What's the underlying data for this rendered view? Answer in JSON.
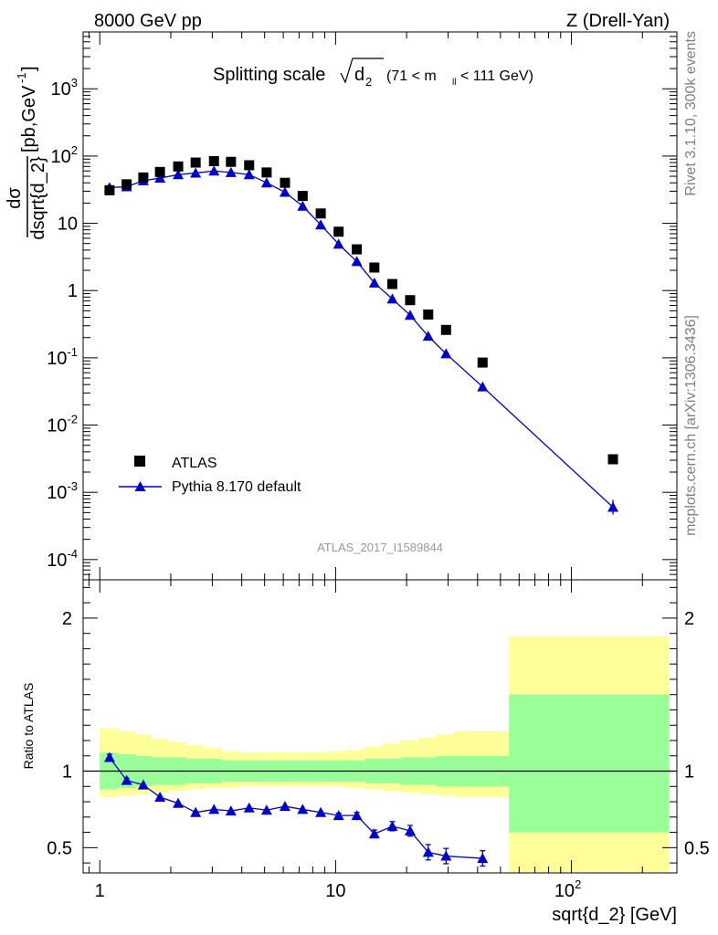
{
  "header": {
    "left": "8000 GeV pp",
    "right": "Z (Drell-Yan)"
  },
  "side_labels": {
    "rivet": "Rivet 3.1.10,  300k events",
    "mcplots": "mcplots.cern.ch [arXiv:1306.3436]"
  },
  "watermark": "ATLAS_2017_I1589844",
  "chart_data": [
    {
      "type": "scatter",
      "title": "Splitting scale √d₂ (71 < m_ll < 111 GeV)",
      "title_parts": {
        "main": "Splitting scale",
        "sym": "d",
        "sub": "2",
        "range_a": "(71 < m",
        "range_sub": "ll",
        "range_b": " < 111 GeV)"
      },
      "ylabel": {
        "num": "dσ",
        "den": "dsqrt{d_2}",
        "unit": "[pb,GeV",
        "unit_sup": "-1",
        "unit_close": "]"
      },
      "xscale": "log",
      "yscale": "log",
      "xlim": [
        0.85,
        280
      ],
      "ylim": [
        5e-05,
        7000
      ],
      "yticks": [
        {
          "v": 0.0001,
          "base": "10",
          "exp": "-4"
        },
        {
          "v": 0.001,
          "base": "10",
          "exp": "-3"
        },
        {
          "v": 0.01,
          "base": "10",
          "exp": "-2"
        },
        {
          "v": 0.1,
          "base": "10",
          "exp": "-1"
        },
        {
          "v": 1,
          "base": "1",
          "exp": ""
        },
        {
          "v": 10,
          "base": "10",
          "exp": ""
        },
        {
          "v": 100,
          "base": "10",
          "exp": "2"
        },
        {
          "v": 1000,
          "base": "10",
          "exp": "3"
        }
      ],
      "legend": {
        "placement": "lower-left",
        "entries": [
          "ATLAS",
          "Pythia 8.170 default"
        ]
      },
      "series": [
        {
          "name": "ATLAS",
          "color": "#000000",
          "x": [
            1.1,
            1.3,
            1.53,
            1.8,
            2.15,
            2.55,
            3.05,
            3.6,
            4.3,
            5.1,
            6.1,
            7.25,
            8.65,
            10.3,
            12.3,
            14.6,
            17.4,
            20.7,
            24.7,
            29.4,
            42,
            150
          ],
          "y": [
            31,
            38,
            48,
            58,
            70,
            80,
            84,
            82,
            73,
            57,
            40,
            25.5,
            14,
            7.5,
            4.1,
            2.2,
            1.25,
            0.72,
            0.44,
            0.26,
            0.085,
            0.0031
          ]
        },
        {
          "name": "Pythia 8.170 default",
          "color": "#0000cc",
          "x": [
            1.1,
            1.3,
            1.53,
            1.8,
            2.15,
            2.55,
            3.05,
            3.6,
            4.3,
            5.1,
            6.1,
            7.25,
            8.65,
            10.3,
            12.3,
            14.6,
            17.4,
            20.7,
            24.7,
            29.4,
            42,
            150
          ],
          "y": [
            34,
            35,
            43,
            47,
            53,
            56,
            60,
            57,
            53,
            40,
            29,
            18,
            9.5,
            4.9,
            2.7,
            1.3,
            0.75,
            0.43,
            0.21,
            0.115,
            0.037,
            0.0006
          ]
        }
      ]
    },
    {
      "type": "scatter",
      "ylabel": "Ratio to ATLAS",
      "xlabel": "sqrt{d_2} [GeV]",
      "xscale": "log",
      "xlim": [
        0.85,
        280
      ],
      "ylim": [
        0.335,
        2.25
      ],
      "xticks": [
        {
          "v": 1,
          "label": "1"
        },
        {
          "v": 10,
          "label": "10"
        },
        {
          "v": 100,
          "label": "10",
          "exp": "2"
        }
      ],
      "yticks": [
        {
          "v": 0.5,
          "label": "0.5"
        },
        {
          "v": 1,
          "label": "1"
        },
        {
          "v": 2,
          "label": "2"
        }
      ],
      "bands": {
        "edges": [
          1,
          1.2,
          1.42,
          1.66,
          1.96,
          2.33,
          2.77,
          3.3,
          3.93,
          4.68,
          5.56,
          6.62,
          7.88,
          9.4,
          11.2,
          13.3,
          15.9,
          18.9,
          22.5,
          26.8,
          31.9,
          54.4,
          260
        ],
        "green_lo": [
          0.88,
          0.89,
          0.9,
          0.91,
          0.91,
          0.92,
          0.92,
          0.93,
          0.93,
          0.93,
          0.93,
          0.93,
          0.93,
          0.93,
          0.93,
          0.92,
          0.92,
          0.91,
          0.91,
          0.9,
          0.9,
          0.6
        ],
        "green_hi": [
          1.12,
          1.11,
          1.1,
          1.09,
          1.09,
          1.08,
          1.08,
          1.07,
          1.07,
          1.07,
          1.07,
          1.07,
          1.07,
          1.07,
          1.07,
          1.08,
          1.08,
          1.09,
          1.09,
          1.1,
          1.1,
          1.5
        ],
        "yellow_lo": [
          0.83,
          0.84,
          0.85,
          0.86,
          0.87,
          0.88,
          0.89,
          0.89,
          0.9,
          0.9,
          0.9,
          0.9,
          0.9,
          0.9,
          0.89,
          0.88,
          0.87,
          0.86,
          0.85,
          0.84,
          0.83,
          0.3
        ],
        "yellow_hi": [
          1.28,
          1.26,
          1.24,
          1.21,
          1.19,
          1.17,
          1.15,
          1.13,
          1.12,
          1.12,
          1.12,
          1.12,
          1.12,
          1.13,
          1.14,
          1.16,
          1.18,
          1.2,
          1.22,
          1.24,
          1.26,
          1.88
        ],
        "colors": {
          "green": "#99ff99",
          "yellow": "#ffff99"
        }
      },
      "series": [
        {
          "name": "Pythia 8.170 default",
          "color": "#0000cc",
          "x": [
            1.1,
            1.3,
            1.53,
            1.8,
            2.15,
            2.55,
            3.05,
            3.6,
            4.3,
            5.1,
            6.1,
            7.25,
            8.65,
            10.3,
            12.3,
            14.6,
            17.4,
            20.7,
            24.7,
            29.4,
            42
          ],
          "y": [
            1.09,
            0.94,
            0.91,
            0.83,
            0.79,
            0.73,
            0.75,
            0.74,
            0.76,
            0.745,
            0.77,
            0.75,
            0.73,
            0.71,
            0.71,
            0.59,
            0.64,
            0.61,
            0.47,
            0.445,
            0.43
          ],
          "err": [
            0.02,
            0.015,
            0.01,
            0.01,
            0.01,
            0.01,
            0.01,
            0.01,
            0.01,
            0.01,
            0.01,
            0.01,
            0.01,
            0.015,
            0.02,
            0.025,
            0.03,
            0.035,
            0.05,
            0.05,
            0.05
          ]
        }
      ]
    }
  ]
}
